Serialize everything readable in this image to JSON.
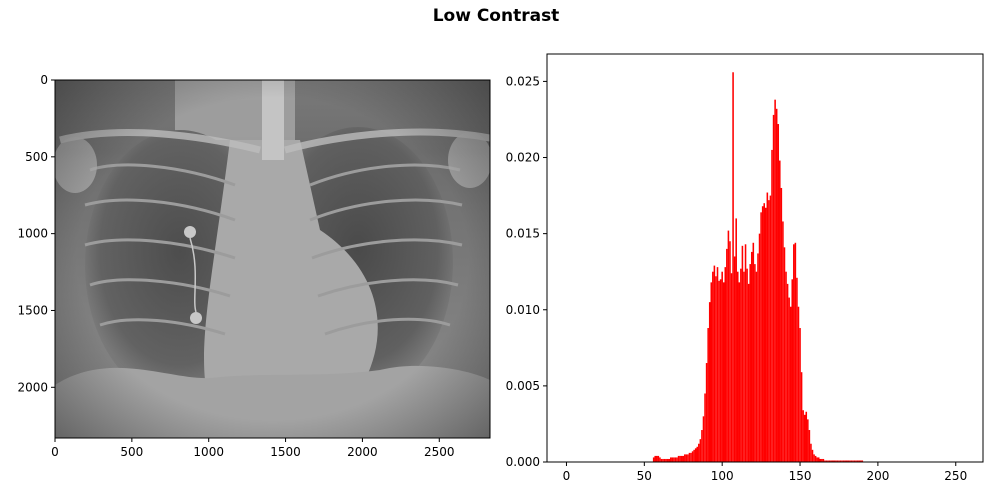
{
  "title": "Low Contrast",
  "chart_data": [
    {
      "type": "image",
      "image_description": "grayscale chest X-ray",
      "x_ticks": [
        0,
        500,
        1000,
        1500,
        2000,
        2500
      ],
      "y_ticks": [
        0,
        500,
        1000,
        1500,
        2000
      ],
      "xlim": [
        0,
        2830
      ],
      "ylim": [
        2330,
        0
      ]
    },
    {
      "type": "bar",
      "bar_color": "#ff0000",
      "x_ticks": [
        0,
        50,
        100,
        150,
        200,
        250
      ],
      "y_ticks": [
        0.0,
        0.005,
        0.01,
        0.015,
        0.02,
        0.025
      ],
      "y_tick_labels": [
        "0.000",
        "0.005",
        "0.010",
        "0.015",
        "0.020",
        "0.025"
      ],
      "xlim": [
        -12.5,
        267.5
      ],
      "ylim": [
        0,
        0.0268
      ],
      "x": [
        56,
        57,
        58,
        59,
        60,
        61,
        62,
        63,
        64,
        65,
        66,
        67,
        68,
        69,
        70,
        71,
        72,
        73,
        74,
        75,
        76,
        77,
        78,
        79,
        80,
        81,
        82,
        83,
        84,
        85,
        86,
        87,
        88,
        89,
        90,
        91,
        92,
        93,
        94,
        95,
        96,
        97,
        98,
        99,
        100,
        101,
        102,
        103,
        104,
        105,
        106,
        107,
        108,
        109,
        110,
        111,
        112,
        113,
        114,
        115,
        116,
        117,
        118,
        119,
        120,
        121,
        122,
        123,
        124,
        125,
        126,
        127,
        128,
        129,
        130,
        131,
        132,
        133,
        134,
        135,
        136,
        137,
        138,
        139,
        140,
        141,
        142,
        143,
        144,
        145,
        146,
        147,
        148,
        149,
        150,
        151,
        152,
        153,
        154,
        155,
        156,
        157,
        158,
        159,
        160,
        161,
        162,
        163,
        164,
        165,
        166,
        167,
        168,
        169,
        170,
        171,
        172,
        173,
        174,
        175,
        176,
        177,
        178,
        179,
        180,
        181,
        182,
        183,
        184,
        185,
        186,
        187,
        188,
        189,
        190
      ],
      "values": [
        0.0003,
        0.0004,
        0.0004,
        0.0004,
        0.0003,
        0.0002,
        0.0002,
        0.0002,
        0.0002,
        0.0002,
        0.0002,
        0.0003,
        0.0003,
        0.0003,
        0.0003,
        0.0003,
        0.0004,
        0.0004,
        0.0004,
        0.0004,
        0.0005,
        0.0005,
        0.0005,
        0.0006,
        0.0006,
        0.0007,
        0.0008,
        0.0009,
        0.001,
        0.0012,
        0.0015,
        0.0021,
        0.003,
        0.0045,
        0.0065,
        0.0088,
        0.0105,
        0.0118,
        0.0125,
        0.0129,
        0.0122,
        0.0128,
        0.0119,
        0.012,
        0.0125,
        0.0118,
        0.0128,
        0.014,
        0.0152,
        0.0145,
        0.0124,
        0.0256,
        0.0135,
        0.016,
        0.0125,
        0.0118,
        0.0127,
        0.0142,
        0.0125,
        0.0143,
        0.0127,
        0.0117,
        0.013,
        0.0138,
        0.0144,
        0.013,
        0.0125,
        0.0137,
        0.015,
        0.0164,
        0.0168,
        0.017,
        0.0167,
        0.0177,
        0.0172,
        0.0175,
        0.0205,
        0.0228,
        0.0238,
        0.0232,
        0.0222,
        0.0198,
        0.018,
        0.0158,
        0.0141,
        0.0125,
        0.0117,
        0.0108,
        0.0102,
        0.012,
        0.0143,
        0.0144,
        0.0121,
        0.0102,
        0.0088,
        0.0059,
        0.0034,
        0.0031,
        0.0033,
        0.0028,
        0.0021,
        0.0012,
        0.0008,
        0.0005,
        0.0004,
        0.0003,
        0.0003,
        0.0002,
        0.0002,
        0.0002,
        0.0001,
        0.0001,
        0.0001,
        0.0001,
        0.0001,
        0.0001,
        0.0001,
        0.0001,
        0.0001,
        0.0001,
        0.0001,
        0.0001,
        0.0001,
        0.0001,
        0.0001,
        0.0001,
        0.0001,
        0.0001,
        0.0001,
        0.0001,
        0.0001,
        0.0001,
        0.0001,
        0.0001,
        0.0001
      ]
    }
  ]
}
